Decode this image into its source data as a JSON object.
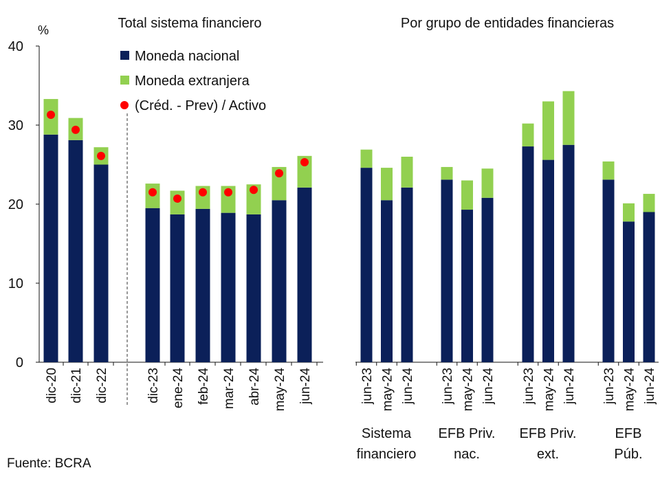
{
  "source": "Fuente: BCRA",
  "colors": {
    "nacional": "#0b2059",
    "extranjera": "#92d050",
    "ratio": "#ff0000"
  },
  "chart_data": [
    {
      "type": "bar",
      "stacked": true,
      "title": "Total sistema financiero",
      "ylabel": "%",
      "ylim": [
        0,
        40
      ],
      "yticks": [
        "0",
        "10",
        "20",
        "30",
        "40"
      ],
      "legend": "top-center",
      "legend_entries": [
        "Moneda nacional",
        "Moneda extranjera",
        "(Créd. - Prev) / Activo"
      ],
      "categories": [
        "dic-20",
        "dic-21",
        "dic-22",
        "dic-23",
        "ene-24",
        "feb-24",
        "mar-24",
        "abr-24",
        "may-24",
        "jun-24"
      ],
      "series": [
        {
          "name": "Moneda nacional",
          "values": [
            28.8,
            28.1,
            25.0,
            19.5,
            18.7,
            19.4,
            18.9,
            18.7,
            20.5,
            22.1
          ]
        },
        {
          "name": "Moneda extranjera",
          "values": [
            4.5,
            2.8,
            2.2,
            3.1,
            3.0,
            2.9,
            3.4,
            3.8,
            4.2,
            4.0
          ]
        },
        {
          "name": "(Créd. - Prev) / Activo",
          "type": "scatter",
          "values": [
            31.3,
            29.4,
            26.1,
            21.5,
            20.7,
            21.5,
            21.5,
            21.8,
            23.9,
            25.3
          ]
        }
      ]
    },
    {
      "type": "bar",
      "stacked": true,
      "title": "Por grupo de entidades financieras",
      "ylim": [
        0,
        40
      ],
      "groups": [
        {
          "label_lines": [
            "Sistema",
            "financiero"
          ],
          "categories": [
            "jun-23",
            "may-24",
            "jun-24"
          ],
          "nacional": [
            24.6,
            20.5,
            22.1
          ],
          "extranjera": [
            2.3,
            4.1,
            3.9
          ]
        },
        {
          "label_lines": [
            "EFB Priv.",
            "nac."
          ],
          "categories": [
            "jun-23",
            "may-24",
            "jun-24"
          ],
          "nacional": [
            23.1,
            19.3,
            20.8
          ],
          "extranjera": [
            1.6,
            3.7,
            3.7
          ]
        },
        {
          "label_lines": [
            "EFB Priv.",
            "ext."
          ],
          "categories": [
            "jun-23",
            "may-24",
            "jun-24"
          ],
          "nacional": [
            27.3,
            25.6,
            27.5
          ],
          "extranjera": [
            2.9,
            7.4,
            6.8
          ]
        },
        {
          "label_lines": [
            "EFB",
            "Púb."
          ],
          "categories": [
            "jun-23",
            "may-24",
            "jun-24"
          ],
          "nacional": [
            23.1,
            17.8,
            19.0
          ],
          "extranjera": [
            2.3,
            2.3,
            2.3
          ]
        }
      ]
    }
  ]
}
